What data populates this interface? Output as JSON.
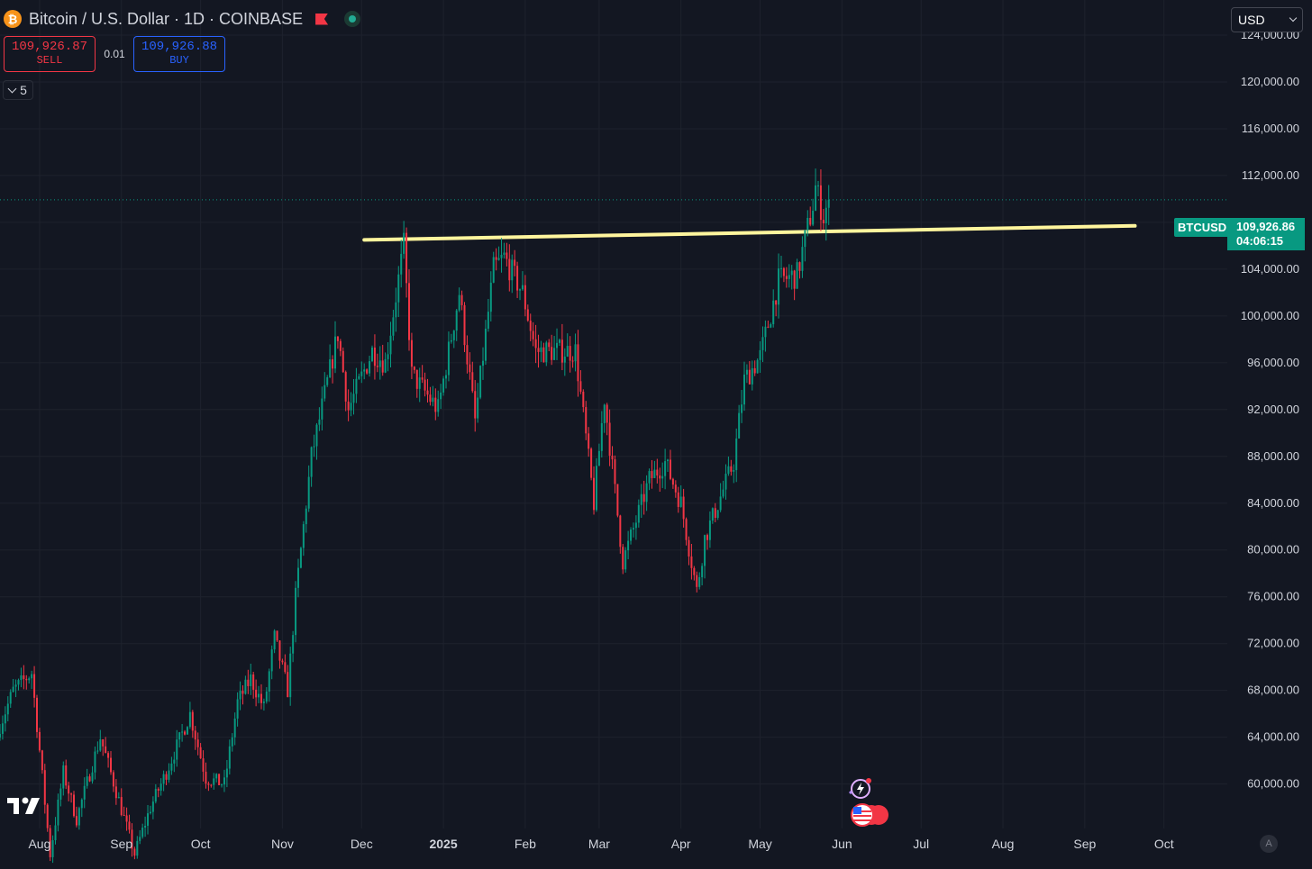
{
  "header": {
    "symbol_icon": "bitcoin-icon",
    "symbol_icon_glyph": "₿",
    "title": "Bitcoin / U.S. Dollar · 1D · COINBASE",
    "status_icons": [
      "flag-icon",
      "market-open-dot-icon"
    ]
  },
  "trade": {
    "sell_price": "109,926.87",
    "sell_label": "SELL",
    "spread": "0.01",
    "buy_price": "109,926.88",
    "buy_label": "BUY"
  },
  "indicators_toggle": {
    "icon": "chevron-down-icon",
    "count": "5"
  },
  "currency_selector": {
    "value": "USD",
    "icon": "chevron-down-icon"
  },
  "last_price": {
    "symbol": "BTCUSD",
    "price": "109,926.86",
    "countdown": "04:06:15"
  },
  "axis_extra": {
    "auto_scale_label": "A"
  },
  "colors": {
    "background": "#131722",
    "grid": "#1e222d",
    "up": "#089981",
    "down": "#f23645",
    "trendline": "#fff59d",
    "text": "#d1d4dc"
  },
  "chart_data": {
    "type": "candlestick",
    "interval": "1D",
    "ylim": [
      56200,
      127000
    ],
    "y_ticks": [
      60000,
      64000,
      68000,
      72000,
      76000,
      80000,
      84000,
      88000,
      92000,
      96000,
      100000,
      104000,
      108000,
      112000,
      116000,
      120000,
      124000
    ],
    "y_tick_labels": [
      "60,000.00",
      "64,000.00",
      "68,000.00",
      "72,000.00",
      "76,000.00",
      "80,000.00",
      "84,000.00",
      "88,000.00",
      "92,000.00",
      "96,000.00",
      "100,000.00",
      "104,000.00",
      "108,000.00",
      "112,000.00",
      "116,000.00",
      "120,000.00",
      "124,000.00"
    ],
    "x_ticks": [
      {
        "label": "Aug",
        "date": "2024-08-01"
      },
      {
        "label": "Sep",
        "date": "2024-09-01"
      },
      {
        "label": "Oct",
        "date": "2024-10-01"
      },
      {
        "label": "Nov",
        "date": "2024-11-01"
      },
      {
        "label": "Dec",
        "date": "2024-12-01"
      },
      {
        "label": "2025",
        "date": "2025-01-01",
        "bold": true
      },
      {
        "label": "Feb",
        "date": "2025-02-01"
      },
      {
        "label": "Mar",
        "date": "2025-03-01"
      },
      {
        "label": "Apr",
        "date": "2025-04-01"
      },
      {
        "label": "May",
        "date": "2025-05-01"
      },
      {
        "label": "Jun",
        "date": "2025-06-01"
      },
      {
        "label": "Jul",
        "date": "2025-07-01"
      },
      {
        "label": "Aug",
        "date": "2025-08-01"
      },
      {
        "label": "Sep",
        "date": "2025-09-01"
      },
      {
        "label": "Oct",
        "date": "2025-10-01"
      }
    ],
    "xlim": [
      "2024-07-17",
      "2025-10-25"
    ],
    "last_price": 109926.86,
    "trendline": {
      "start": {
        "date": "2024-12-02",
        "price": 106500
      },
      "end": {
        "date": "2025-09-20",
        "price": 107700
      }
    },
    "anchors": [
      {
        "date": "2024-07-17",
        "price": 65000
      },
      {
        "date": "2024-07-22",
        "price": 68000
      },
      {
        "date": "2024-07-29",
        "price": 69500
      },
      {
        "date": "2024-08-05",
        "price": 54000
      },
      {
        "date": "2024-08-10",
        "price": 61000
      },
      {
        "date": "2024-08-15",
        "price": 57000
      },
      {
        "date": "2024-08-24",
        "price": 64000
      },
      {
        "date": "2024-09-06",
        "price": 54000
      },
      {
        "date": "2024-09-12",
        "price": 58000
      },
      {
        "date": "2024-09-18",
        "price": 61000
      },
      {
        "date": "2024-09-27",
        "price": 66000
      },
      {
        "date": "2024-10-03",
        "price": 60500
      },
      {
        "date": "2024-10-10",
        "price": 60000
      },
      {
        "date": "2024-10-15",
        "price": 67000
      },
      {
        "date": "2024-10-20",
        "price": 69000
      },
      {
        "date": "2024-10-25",
        "price": 66500
      },
      {
        "date": "2024-10-29",
        "price": 72500
      },
      {
        "date": "2024-11-03",
        "price": 68000
      },
      {
        "date": "2024-11-06",
        "price": 76000
      },
      {
        "date": "2024-11-12",
        "price": 88000
      },
      {
        "date": "2024-11-22",
        "price": 98500
      },
      {
        "date": "2024-11-26",
        "price": 92000
      },
      {
        "date": "2024-12-05",
        "price": 97000
      },
      {
        "date": "2024-12-10",
        "price": 96000
      },
      {
        "date": "2024-12-17",
        "price": 106000
      },
      {
        "date": "2024-12-20",
        "price": 95000
      },
      {
        "date": "2024-12-30",
        "price": 92000
      },
      {
        "date": "2025-01-07",
        "price": 102000
      },
      {
        "date": "2025-01-13",
        "price": 91000
      },
      {
        "date": "2025-01-20",
        "price": 104000
      },
      {
        "date": "2025-01-24",
        "price": 105000
      },
      {
        "date": "2025-01-31",
        "price": 102000
      },
      {
        "date": "2025-02-05",
        "price": 97000
      },
      {
        "date": "2025-02-20",
        "price": 97000
      },
      {
        "date": "2025-02-27",
        "price": 84000
      },
      {
        "date": "2025-03-03",
        "price": 93000
      },
      {
        "date": "2025-03-10",
        "price": 79000
      },
      {
        "date": "2025-03-20",
        "price": 86000
      },
      {
        "date": "2025-03-26",
        "price": 87500
      },
      {
        "date": "2025-04-01",
        "price": 84000
      },
      {
        "date": "2025-04-07",
        "price": 76500
      },
      {
        "date": "2025-04-10",
        "price": 81000
      },
      {
        "date": "2025-04-21",
        "price": 87500
      },
      {
        "date": "2025-04-25",
        "price": 94500
      },
      {
        "date": "2025-05-01",
        "price": 96500
      },
      {
        "date": "2025-05-08",
        "price": 103000
      },
      {
        "date": "2025-05-15",
        "price": 103500
      },
      {
        "date": "2025-05-21",
        "price": 109500
      },
      {
        "date": "2025-05-22",
        "price": 111000
      },
      {
        "date": "2025-05-25",
        "price": 108500
      },
      {
        "date": "2025-05-27",
        "price": 109900
      }
    ]
  }
}
